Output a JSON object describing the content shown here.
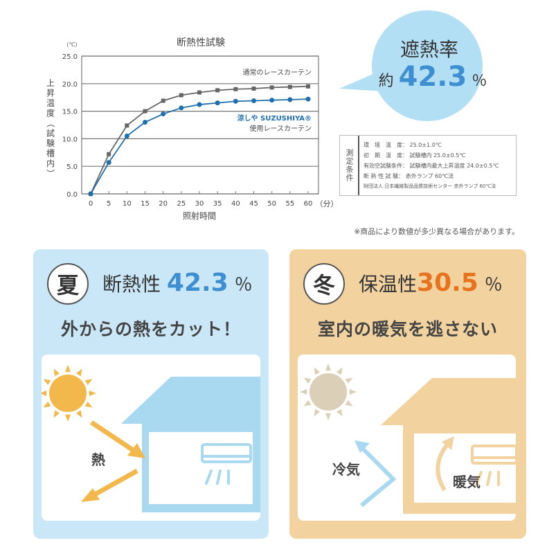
{
  "chart_data": {
    "type": "line",
    "title": "断熱性試験",
    "ylabel": "上昇温度（試験槽内）",
    "yunit": "(℃)",
    "xlabel": "照射時間",
    "xunit": "（分）",
    "ylim": [
      0,
      25
    ],
    "yticks": [
      "0.0",
      "5.0",
      "10.0",
      "15.0",
      "20.0",
      "25.0"
    ],
    "x": [
      0,
      5,
      10,
      15,
      20,
      25,
      30,
      35,
      40,
      45,
      50,
      55,
      60
    ],
    "grid": "horizontal",
    "series": [
      {
        "name": "通常のレースカーテン",
        "color": "#666666",
        "marker": "square",
        "values": [
          0,
          7.2,
          12.4,
          15.0,
          16.9,
          17.9,
          18.4,
          18.8,
          19.0,
          19.1,
          19.3,
          19.4,
          19.5
        ]
      },
      {
        "name": "涼しや SUZUSHIYA®",
        "name2": "使用レースカーテン",
        "color": "#1f6fae",
        "marker": "circle",
        "values": [
          0,
          5.7,
          10.5,
          13.0,
          14.5,
          15.6,
          16.2,
          16.5,
          16.8,
          16.9,
          17.0,
          17.1,
          17.2
        ]
      }
    ]
  },
  "bubble": {
    "title": "遮熱率",
    "prefix": "約",
    "value": "42.3",
    "unit": "％",
    "color": "#b3dff5"
  },
  "conditions": {
    "heading": "測定条件",
    "rows": [
      "環　境　温　度： 25.0±1.0℃",
      "初　期　温　度： 試験槽内 25.0±0.5℃",
      "有効空試験条件： 試験槽内最大上昇温度 24.0±0.5℃",
      "断 熱 性 試 験： 赤外ランプ 60℃法"
    ],
    "footer": "財団法人 日本繊維製品品質技術センター 赤外ランプ 60℃法"
  },
  "note": "※商品により数値が多少異なる場合があります。",
  "summer": {
    "badge": "夏",
    "label": "断熱性",
    "value": "42.3",
    "unit": "％",
    "color": "#3d8fd1",
    "subtitle": "外からの熱をカット！",
    "heat_label": "熱"
  },
  "winter": {
    "badge": "冬",
    "label": "保温性",
    "value": "30.5",
    "unit": "％",
    "color": "#e8731f",
    "subtitle": "室内の暖気を逃さない",
    "cold_label": "冷気",
    "warm_label": "暖気"
  }
}
